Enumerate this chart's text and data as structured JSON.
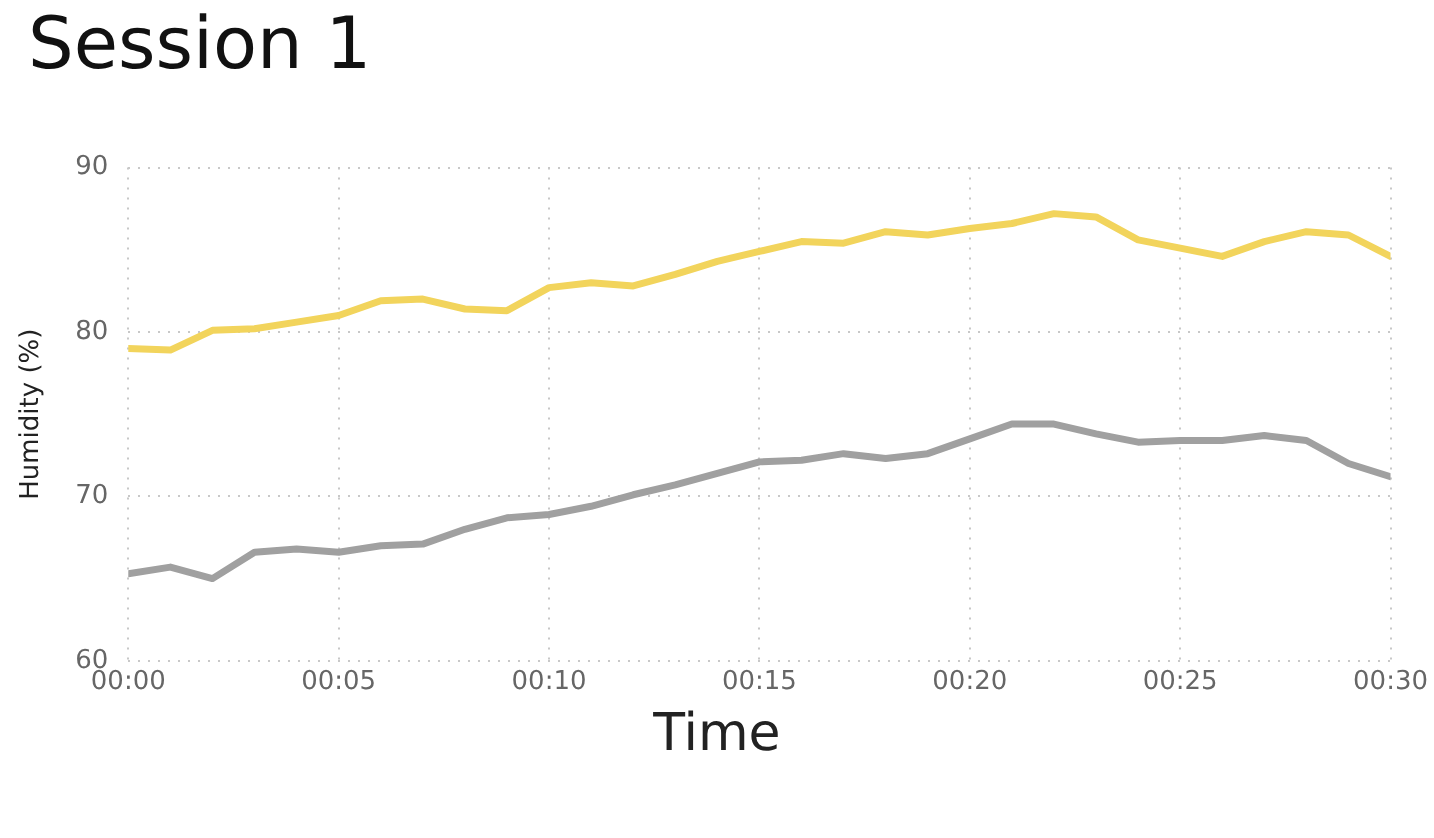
{
  "chart_data": {
    "type": "line",
    "title": "Session 1",
    "xlabel": "Time",
    "ylabel": "Humidity (%)",
    "x": [
      0,
      1,
      2,
      3,
      4,
      5,
      6,
      7,
      8,
      9,
      10,
      11,
      12,
      13,
      14,
      15,
      16,
      17,
      18,
      19,
      20,
      21,
      22,
      23,
      24,
      25,
      26,
      27,
      28,
      29,
      30
    ],
    "series": [
      {
        "color": "#f2d45c",
        "values": [
          79.0,
          78.9,
          80.1,
          80.2,
          80.6,
          81.0,
          81.9,
          82.0,
          81.4,
          81.3,
          82.7,
          83.0,
          82.8,
          83.5,
          84.3,
          84.9,
          85.5,
          85.4,
          86.1,
          85.9,
          86.3,
          86.6,
          87.2,
          87.0,
          85.6,
          85.1,
          84.6,
          85.5,
          86.1,
          85.9,
          84.6
        ]
      },
      {
        "color": "#a0a0a0",
        "values": [
          65.3,
          65.7,
          65.0,
          66.6,
          66.8,
          66.6,
          67.0,
          67.1,
          68.0,
          68.7,
          68.9,
          69.4,
          70.1,
          70.7,
          71.4,
          72.1,
          72.2,
          72.6,
          72.3,
          72.6,
          73.5,
          74.4,
          74.4,
          73.8,
          73.3,
          73.4,
          73.4,
          73.7,
          73.4,
          72.0,
          71.2
        ]
      }
    ],
    "xlim": [
      0,
      30
    ],
    "xticks": [
      {
        "value": 0,
        "label": "00:00"
      },
      {
        "value": 5,
        "label": "00:05"
      },
      {
        "value": 10,
        "label": "00:10"
      },
      {
        "value": 15,
        "label": "00:15"
      },
      {
        "value": 20,
        "label": "00:20"
      },
      {
        "value": 25,
        "label": "00:25"
      },
      {
        "value": 30,
        "label": "00:30"
      }
    ],
    "ylim": [
      60,
      90
    ],
    "yticks": [
      60,
      70,
      80,
      90
    ],
    "grid": true,
    "legend": false,
    "marker": "none",
    "line_style": "solid"
  }
}
